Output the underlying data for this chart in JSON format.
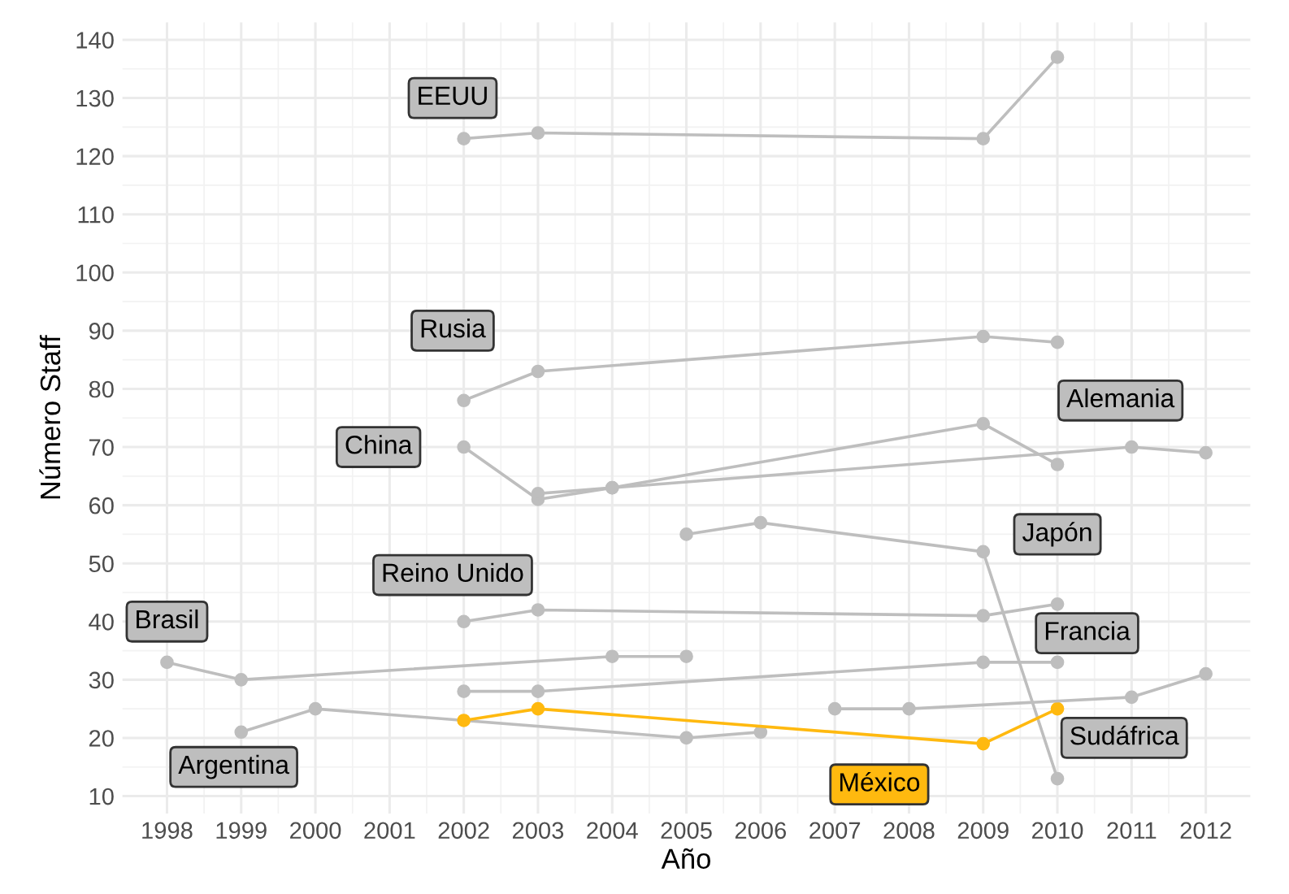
{
  "chart_data": {
    "type": "line",
    "xlabel": "Año",
    "ylabel": "Número Staff",
    "xlim": [
      1997.4,
      2012.6
    ],
    "ylim": [
      7,
      143
    ],
    "xticks": [
      1998,
      1999,
      2000,
      2001,
      2002,
      2003,
      2004,
      2005,
      2006,
      2007,
      2008,
      2009,
      2010,
      2011,
      2012
    ],
    "yticks": [
      10,
      20,
      30,
      40,
      50,
      60,
      70,
      80,
      90,
      100,
      110,
      120,
      130,
      140
    ],
    "grid": true,
    "marker": "circle",
    "line_style": "solid",
    "legend": false,
    "series": [
      {
        "name": "EEUU",
        "color": "#bebebe",
        "x": [
          2002,
          2003,
          2009,
          2010
        ],
        "values": [
          123,
          124,
          123,
          137
        ]
      },
      {
        "name": "Rusia",
        "color": "#bebebe",
        "x": [
          2002,
          2003,
          2009,
          2010
        ],
        "values": [
          78,
          83,
          89,
          88
        ]
      },
      {
        "name": "China",
        "color": "#bebebe",
        "x": [
          2002,
          2003,
          2004,
          2009,
          2010
        ],
        "values": [
          70,
          61,
          63,
          74,
          67
        ]
      },
      {
        "name": "Alemania",
        "color": "#bebebe",
        "x": [
          2003,
          2004,
          2011,
          2012
        ],
        "values": [
          62,
          63,
          70,
          69
        ]
      },
      {
        "name": "Japón",
        "color": "#bebebe",
        "x": [
          2005,
          2006,
          2009,
          2010
        ],
        "values": [
          55,
          57,
          52,
          13
        ]
      },
      {
        "name": "Reino Unido",
        "color": "#bebebe",
        "x": [
          2002,
          2003,
          2009,
          2010
        ],
        "values": [
          40,
          42,
          41,
          43
        ]
      },
      {
        "name": "Brasil",
        "color": "#bebebe",
        "x": [
          1998,
          1999,
          2004,
          2005
        ],
        "values": [
          33,
          30,
          34,
          34
        ]
      },
      {
        "name": "Francia",
        "color": "#bebebe",
        "x": [
          2002,
          2003,
          2009,
          2010
        ],
        "values": [
          28,
          28,
          33,
          33
        ]
      },
      {
        "name": "Argentina",
        "color": "#bebebe",
        "x": [
          1999,
          2000,
          2005,
          2006
        ],
        "values": [
          21,
          25,
          20,
          21
        ]
      },
      {
        "name": "México",
        "color": "#ffb90f",
        "x": [
          2002,
          2003,
          2009,
          2010
        ],
        "values": [
          23,
          25,
          19,
          25
        ]
      },
      {
        "name": "Sudáfrica",
        "color": "#bebebe",
        "x": [
          2007,
          2008,
          2011,
          2012
        ],
        "values": [
          25,
          25,
          27,
          31
        ]
      }
    ]
  }
}
